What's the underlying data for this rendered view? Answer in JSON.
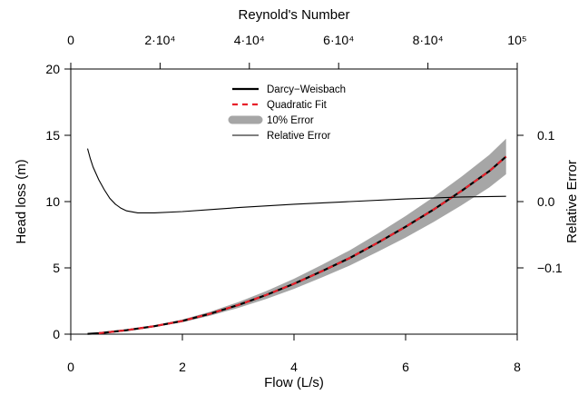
{
  "chart_data": {
    "type": "line",
    "title": "",
    "xlabel": "Flow (L/s)",
    "ylabel": "Head loss (m)",
    "y2label": "Relative Error",
    "x2label": "Reynold's Number",
    "xlim": [
      0,
      8
    ],
    "ylim": [
      0,
      20
    ],
    "y2lim": [
      -0.2,
      0.2
    ],
    "x2lim": [
      0,
      100000
    ],
    "xticks": [
      0,
      2,
      4,
      6,
      8
    ],
    "xtick_labels": [
      "0",
      "2",
      "4",
      "6",
      "8"
    ],
    "yticks": [
      0,
      5,
      10,
      15,
      20
    ],
    "ytick_labels": [
      "0",
      "5",
      "10",
      "15",
      "20"
    ],
    "y2ticks": [
      -0.1,
      0.0,
      0.1
    ],
    "y2tick_labels": [
      "−0.1",
      "0.0",
      "0.1"
    ],
    "x2ticks": [
      0,
      20000,
      40000,
      60000,
      80000,
      100000
    ],
    "x2tick_labels": [
      "0",
      "2·10⁴",
      "4·10⁴",
      "6·10⁴",
      "8·10⁴",
      "10⁵"
    ],
    "legend_position": "top-center",
    "legend": [
      "Darcy−Weisbach",
      "Quadratic Fit",
      "10% Error",
      "Relative Error"
    ],
    "colors": {
      "darcy": "#000000",
      "quadratic": "#e8202a",
      "band": "#a6a6a6",
      "relative_error": "#000000"
    },
    "series": [
      {
        "name": "Darcy−Weisbach",
        "axis": "left",
        "x": [
          0.3,
          0.5,
          1.0,
          1.5,
          2.0,
          2.5,
          3.0,
          3.5,
          4.0,
          4.5,
          5.0,
          5.5,
          6.0,
          6.5,
          7.0,
          7.5,
          7.8
        ],
        "y": [
          0.02,
          0.07,
          0.3,
          0.6,
          1.0,
          1.55,
          2.2,
          2.95,
          3.8,
          4.75,
          5.75,
          6.9,
          8.1,
          9.4,
          10.8,
          12.3,
          13.4
        ]
      },
      {
        "name": "Quadratic Fit",
        "axis": "left",
        "x": [
          0.5,
          1.0,
          1.5,
          2.0,
          2.5,
          3.0,
          3.5,
          4.0,
          4.5,
          5.0,
          5.5,
          6.0,
          6.5,
          7.0,
          7.5,
          7.8
        ],
        "y": [
          0.07,
          0.3,
          0.6,
          1.0,
          1.55,
          2.2,
          2.95,
          3.8,
          4.75,
          5.75,
          6.9,
          8.1,
          9.4,
          10.8,
          12.3,
          13.4
        ]
      },
      {
        "name": "10% Error",
        "axis": "left",
        "type": "band",
        "x": [
          0.3,
          0.5,
          1.0,
          1.5,
          2.0,
          2.5,
          3.0,
          3.5,
          4.0,
          4.5,
          5.0,
          5.5,
          6.0,
          6.5,
          7.0,
          7.5,
          7.8
        ],
        "y_lower": [
          0.02,
          0.06,
          0.27,
          0.54,
          0.9,
          1.4,
          1.98,
          2.66,
          3.42,
          4.28,
          5.18,
          6.21,
          7.29,
          8.46,
          9.72,
          11.07,
          12.06
        ],
        "y_upper": [
          0.02,
          0.08,
          0.33,
          0.66,
          1.1,
          1.7,
          2.42,
          3.25,
          4.18,
          5.23,
          6.33,
          7.59,
          8.91,
          10.34,
          11.88,
          13.53,
          14.74
        ]
      },
      {
        "name": "Relative Error",
        "axis": "right",
        "x": [
          0.3,
          0.35,
          0.4,
          0.5,
          0.6,
          0.7,
          0.8,
          0.9,
          1.0,
          1.2,
          1.5,
          2.0,
          2.5,
          3.0,
          4.0,
          5.0,
          6.0,
          7.0,
          7.8
        ],
        "y": [
          0.08,
          0.065,
          0.052,
          0.033,
          0.018,
          0.005,
          -0.004,
          -0.01,
          -0.014,
          -0.017,
          -0.017,
          -0.015,
          -0.012,
          -0.009,
          -0.004,
          0.0,
          0.004,
          0.007,
          0.008
        ]
      }
    ]
  }
}
